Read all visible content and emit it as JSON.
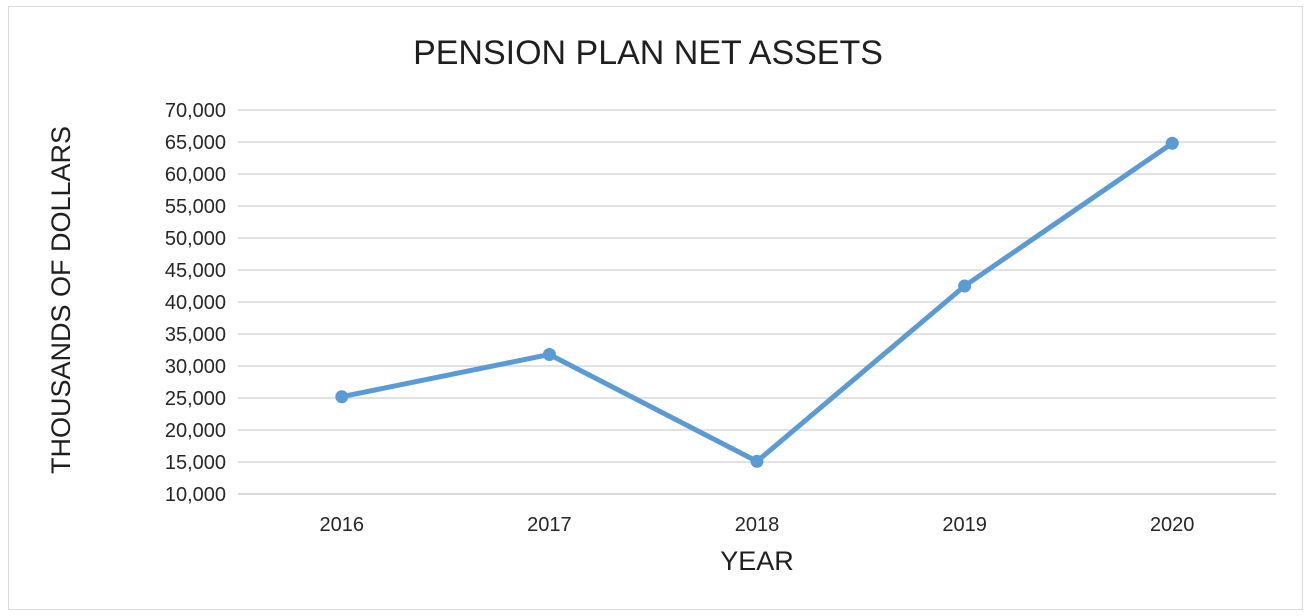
{
  "chart_data": {
    "type": "line",
    "title": "PENSION PLAN NET ASSETS",
    "xlabel": "YEAR",
    "ylabel": "THOUSANDS OF DOLLARS",
    "categories": [
      "2016",
      "2017",
      "2018",
      "2019",
      "2020"
    ],
    "series": [
      {
        "values": [
          25200,
          31800,
          15100,
          42500,
          64800
        ],
        "color": "#5b9bd5"
      }
    ],
    "ylim": [
      10000,
      70000
    ],
    "y_ticks": [
      "10,000",
      "15,000",
      "20,000",
      "25,000",
      "30,000",
      "35,000",
      "40,000",
      "45,000",
      "50,000",
      "55,000",
      "60,000",
      "65,000",
      "70,000"
    ],
    "grid": true,
    "legend": "none"
  }
}
